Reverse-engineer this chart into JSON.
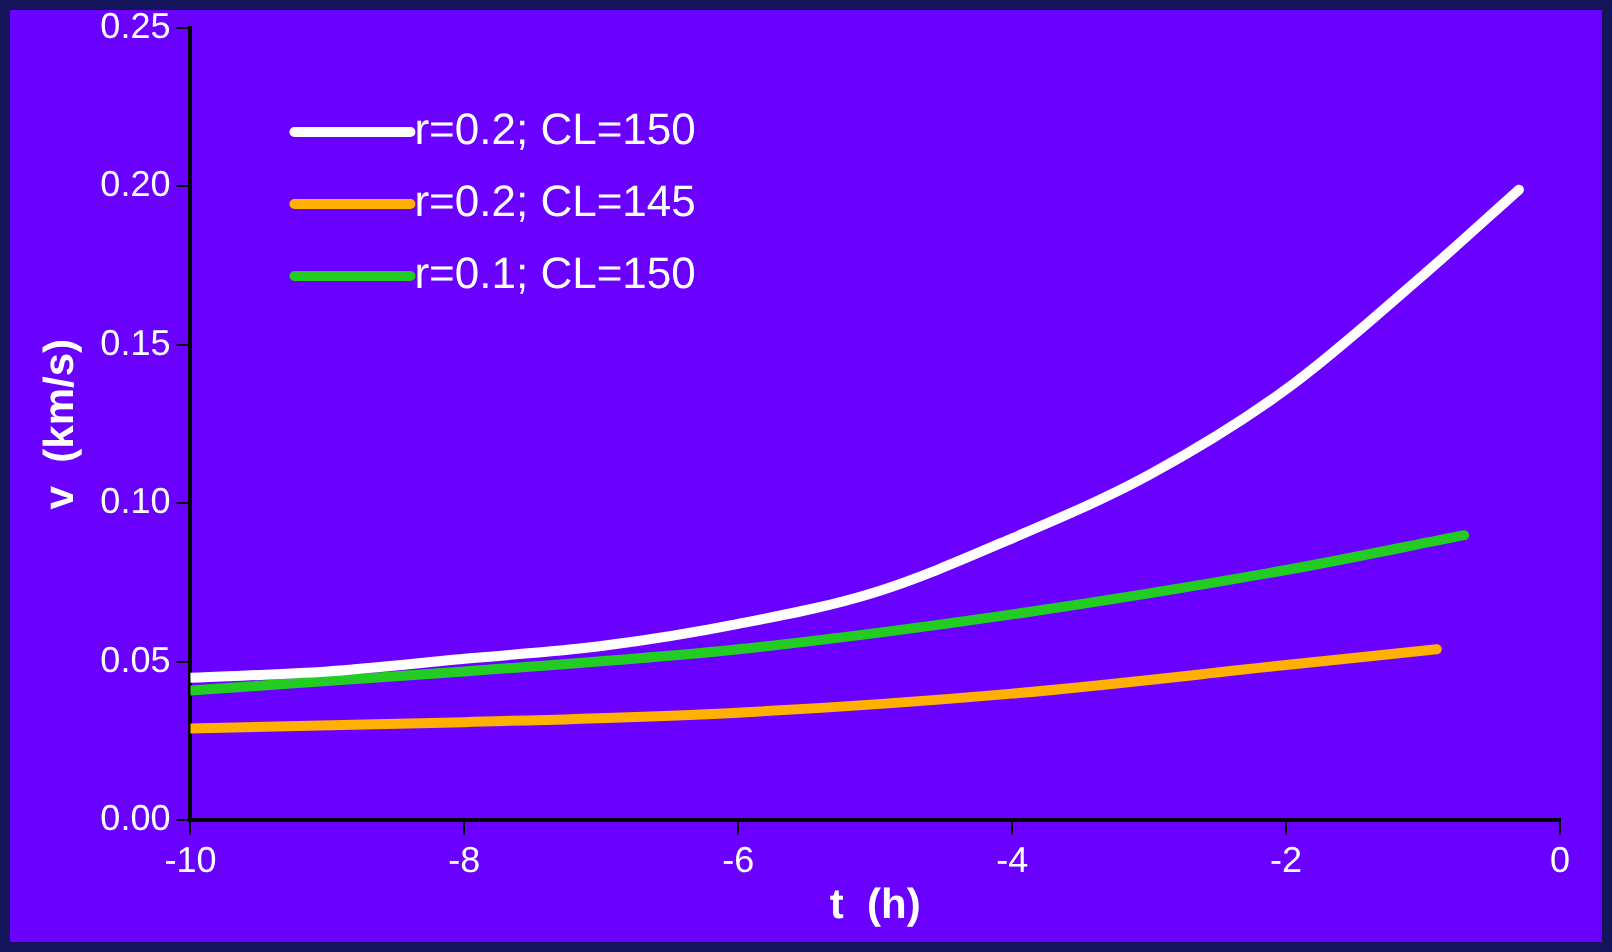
{
  "chart_data": {
    "type": "line",
    "xlabel": "t  (h)",
    "ylabel": "v  (km/s)",
    "xlim": [
      -10,
      0
    ],
    "xticks": [
      -10,
      -8,
      -6,
      -4,
      -2,
      0
    ],
    "ylim": [
      0,
      0.25
    ],
    "yticks": [
      {
        "value": 0,
        "label": "0.00"
      },
      {
        "value": 0.05,
        "label": "0.05"
      },
      {
        "value": 0.1,
        "label": "0.10"
      },
      {
        "value": 0.15,
        "label": "0.15"
      },
      {
        "value": 0.2,
        "label": "0.20"
      },
      {
        "value": 0.25,
        "label": "0.25"
      }
    ],
    "grid": false,
    "legend": "top left",
    "marker": "none",
    "line_style": "solid",
    "series": [
      {
        "name": "r=0.2; CL=150",
        "color": "#ffffff",
        "x": [
          -10,
          -9,
          -8,
          -7,
          -6,
          -5,
          -4,
          -3,
          -2,
          -1,
          -0.3
        ],
        "values": [
          0.045,
          0.047,
          0.051,
          0.055,
          0.062,
          0.072,
          0.089,
          0.109,
          0.136,
          0.172,
          0.199
        ]
      },
      {
        "name": "r=0.2; CL=145",
        "color": "#ffb000",
        "x": [
          -10,
          -8,
          -6,
          -4,
          -2,
          -0.9
        ],
        "values": [
          0.029,
          0.031,
          0.034,
          0.04,
          0.049,
          0.054
        ]
      },
      {
        "name": "r=0.1; CL=150",
        "color": "#22cc22",
        "x": [
          -10,
          -8,
          -6,
          -4,
          -2,
          -0.7
        ],
        "values": [
          0.041,
          0.047,
          0.054,
          0.065,
          0.079,
          0.09
        ]
      }
    ]
  }
}
